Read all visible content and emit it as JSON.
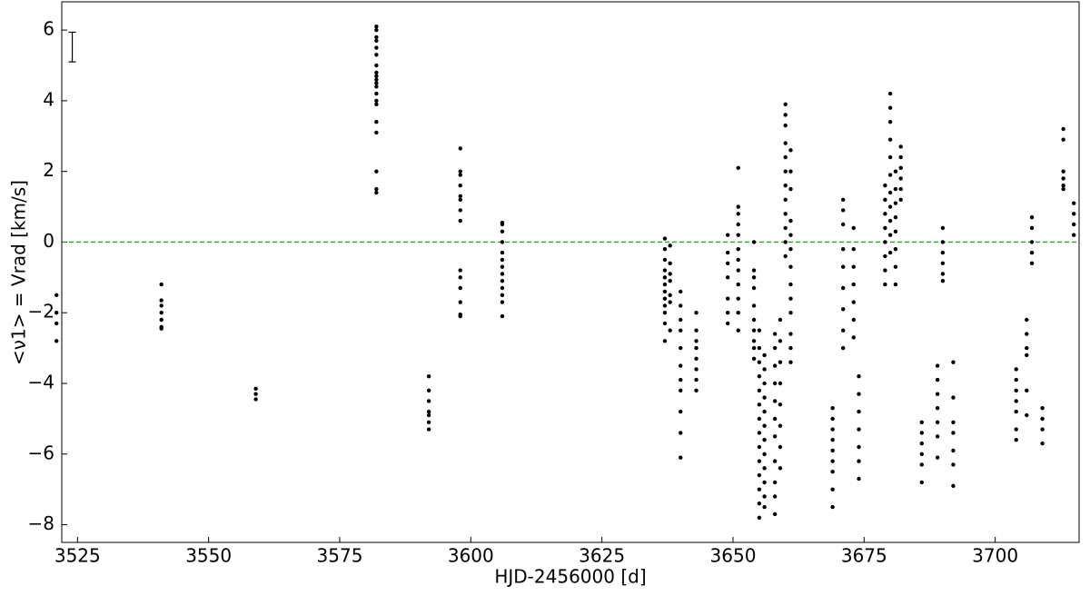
{
  "chart_data": {
    "type": "scatter",
    "xlabel": "HJD-2456000 [d]",
    "ylabel": "<ν1> = Vrad [km/s]",
    "xlim": [
      3522,
      3716
    ],
    "ylim": [
      -8.5,
      6.8
    ],
    "xticks": [
      3525,
      3550,
      3575,
      3600,
      3625,
      3650,
      3675,
      3700
    ],
    "yticks": [
      {
        "value": -8,
        "label": "−8"
      },
      {
        "value": -6,
        "label": "−6"
      },
      {
        "value": -4,
        "label": "−4"
      },
      {
        "value": -2,
        "label": "−2"
      },
      0,
      2,
      4,
      6
    ],
    "hline": {
      "value": 0,
      "color": "#2ca02c"
    },
    "errorbar": {
      "x": 3524,
      "y": 5.52,
      "err": 0.42
    },
    "color": "#000000",
    "x": [
      3521,
      3521,
      3521,
      3521,
      3541,
      3541,
      3541,
      3541,
      3541,
      3541,
      3541,
      3559,
      3559,
      3559,
      3582,
      3582,
      3582,
      3582,
      3582,
      3582,
      3582,
      3582,
      3582,
      3582,
      3582,
      3582,
      3582,
      3582,
      3582,
      3582,
      3582,
      3582,
      3582,
      3582,
      3592,
      3592,
      3592,
      3592,
      3592,
      3592,
      3592,
      3598,
      3598,
      3598,
      3598,
      3598,
      3598,
      3598,
      3598,
      3598,
      3598,
      3598,
      3598,
      3598,
      3598,
      3606,
      3606,
      3606,
      3606,
      3606,
      3606,
      3606,
      3606,
      3606,
      3606,
      3606,
      3606,
      3606,
      3637,
      3637,
      3637,
      3637,
      3637,
      3637,
      3637,
      3637,
      3637,
      3637,
      3637,
      3637,
      3638,
      3638,
      3638,
      3638,
      3638,
      3638,
      3638,
      3640,
      3640,
      3640,
      3640,
      3640,
      3640,
      3640,
      3640,
      3640,
      3640,
      3640,
      3643,
      3643,
      3643,
      3643,
      3643,
      3643,
      3643,
      3643,
      3649,
      3649,
      3649,
      3649,
      3649,
      3649,
      3649,
      3651,
      3651,
      3651,
      3651,
      3651,
      3651,
      3651,
      3651,
      3651,
      3651,
      3651,
      3651,
      3654,
      3654,
      3654,
      3654,
      3654,
      3654,
      3654,
      3654,
      3654,
      3654,
      3655,
      3655,
      3655,
      3655,
      3655,
      3655,
      3655,
      3655,
      3655,
      3655,
      3655,
      3655,
      3655,
      3655,
      3656,
      3656,
      3656,
      3656,
      3656,
      3656,
      3656,
      3656,
      3656,
      3656,
      3656,
      3656,
      3658,
      3658,
      3658,
      3658,
      3658,
      3658,
      3658,
      3658,
      3658,
      3658,
      3658,
      3659,
      3659,
      3659,
      3659,
      3659,
      3659,
      3659,
      3659,
      3660,
      3660,
      3660,
      3660,
      3660,
      3660,
      3660,
      3660,
      3660,
      3660,
      3660,
      3660,
      3661,
      3661,
      3661,
      3661,
      3661,
      3661,
      3661,
      3661,
      3661,
      3661,
      3661,
      3661,
      3661,
      3669,
      3669,
      3669,
      3669,
      3669,
      3669,
      3669,
      3669,
      3669,
      3671,
      3671,
      3671,
      3671,
      3671,
      3671,
      3671,
      3671,
      3671,
      3673,
      3673,
      3673,
      3673,
      3673,
      3673,
      3673,
      3674,
      3674,
      3674,
      3674,
      3674,
      3674,
      3674,
      3679,
      3679,
      3679,
      3679,
      3679,
      3679,
      3679,
      3679,
      3680,
      3680,
      3680,
      3680,
      3680,
      3680,
      3680,
      3680,
      3680,
      3680,
      3680,
      3681,
      3681,
      3681,
      3681,
      3681,
      3681,
      3681,
      3681,
      3682,
      3682,
      3682,
      3682,
      3682,
      3682,
      3686,
      3686,
      3686,
      3686,
      3686,
      3686,
      3689,
      3689,
      3689,
      3689,
      3689,
      3689,
      3689,
      3690,
      3690,
      3690,
      3690,
      3690,
      3690,
      3692,
      3692,
      3692,
      3692,
      3692,
      3692,
      3692,
      3704,
      3704,
      3704,
      3704,
      3704,
      3704,
      3704,
      3706,
      3706,
      3706,
      3706,
      3706,
      3706,
      3707,
      3707,
      3707,
      3707,
      3707,
      3709,
      3709,
      3709,
      3709,
      3713,
      3713,
      3713,
      3713,
      3713,
      3713,
      3715,
      3715,
      3715,
      3715
    ],
    "y": [
      -1.5,
      -2.0,
      -2.3,
      -2.8,
      -1.2,
      -1.65,
      -1.8,
      -2.0,
      -2.2,
      -2.4,
      -2.45,
      -4.15,
      -4.3,
      -4.45,
      6.1,
      6.0,
      5.8,
      5.7,
      5.5,
      5.3,
      5.0,
      4.8,
      4.7,
      4.6,
      4.5,
      4.4,
      4.2,
      4.0,
      3.9,
      3.4,
      3.1,
      2.0,
      1.5,
      1.4,
      -3.8,
      -4.2,
      -4.5,
      -4.8,
      -4.9,
      -5.1,
      -5.3,
      2.65,
      2.0,
      1.9,
      1.6,
      1.3,
      1.2,
      0.9,
      0.6,
      -0.8,
      -1.0,
      -1.3,
      -1.7,
      -2.05,
      -2.1,
      0.55,
      0.5,
      0.3,
      0.0,
      -0.3,
      -0.5,
      -0.7,
      -0.9,
      -1.1,
      -1.3,
      -1.5,
      -1.7,
      -2.1,
      0.1,
      -0.2,
      -0.5,
      -0.8,
      -1.0,
      -1.2,
      -1.4,
      -1.6,
      -1.8,
      -2.0,
      -2.3,
      -2.8,
      -0.1,
      -0.6,
      -0.9,
      -1.1,
      -1.5,
      -1.7,
      -2.5,
      -1.4,
      -1.8,
      -2.2,
      -2.5,
      -3.0,
      -3.5,
      -3.9,
      -4.2,
      -4.8,
      -5.4,
      -6.1,
      -2.0,
      -2.5,
      -2.8,
      -3.0,
      -3.3,
      -3.6,
      -3.9,
      -4.2,
      0.2,
      -0.3,
      -0.6,
      -1.0,
      -1.6,
      -2.0,
      -2.3,
      2.1,
      1.0,
      0.8,
      0.5,
      0.2,
      -0.2,
      -0.5,
      -0.8,
      -1.2,
      -1.6,
      -2.0,
      -2.5,
      0.0,
      -0.8,
      -1.0,
      -1.3,
      -1.8,
      -2.2,
      -2.5,
      -2.8,
      -3.0,
      -3.3,
      -2.5,
      -3.0,
      -3.4,
      -3.8,
      -4.2,
      -4.6,
      -5.0,
      -5.4,
      -5.8,
      -6.2,
      -6.6,
      -7.0,
      -7.4,
      -7.8,
      -3.2,
      -3.6,
      -4.0,
      -4.4,
      -4.8,
      -5.2,
      -5.6,
      -6.0,
      -6.4,
      -6.8,
      -7.2,
      -7.5,
      -2.6,
      -3.0,
      -3.5,
      -4.0,
      -4.5,
      -5.0,
      -5.5,
      -6.2,
      -6.8,
      -7.2,
      -7.7,
      -2.2,
      -2.8,
      -3.4,
      -4.0,
      -4.6,
      -5.2,
      -5.8,
      -6.4,
      3.9,
      3.6,
      3.3,
      2.8,
      2.4,
      2.0,
      1.6,
      1.2,
      0.8,
      0.4,
      0.0,
      -0.4,
      2.6,
      2.0,
      1.5,
      0.6,
      0.2,
      -0.2,
      -0.7,
      -1.2,
      -1.6,
      -2.0,
      -2.6,
      -3.0,
      -3.4,
      -4.7,
      -5.0,
      -5.3,
      -5.6,
      -5.9,
      -6.2,
      -6.5,
      -7.0,
      -7.5,
      1.2,
      0.9,
      0.5,
      -0.2,
      -0.7,
      -1.3,
      -1.9,
      -2.5,
      -3.0,
      0.4,
      -0.2,
      -0.7,
      -1.2,
      -1.7,
      -2.2,
      -2.7,
      -3.8,
      -4.3,
      -4.8,
      -5.3,
      -5.8,
      -6.2,
      -6.7,
      1.6,
      1.2,
      0.8,
      0.4,
      0.0,
      -0.4,
      -0.8,
      -1.2,
      4.2,
      3.8,
      3.4,
      2.9,
      2.4,
      1.9,
      1.4,
      1.0,
      0.6,
      0.2,
      -0.3,
      2.0,
      1.5,
      1.1,
      0.7,
      0.3,
      -0.2,
      -0.7,
      -1.2,
      2.7,
      2.4,
      2.1,
      1.8,
      1.5,
      1.2,
      -5.1,
      -5.4,
      -5.7,
      -6.0,
      -6.3,
      -6.8,
      -3.5,
      -3.9,
      -4.3,
      -4.7,
      -5.1,
      -5.5,
      -6.1,
      0.4,
      0.0,
      -0.3,
      -0.6,
      -0.9,
      -1.1,
      -3.4,
      -4.4,
      -5.1,
      -5.4,
      -5.9,
      -6.3,
      -6.9,
      -3.6,
      -3.9,
      -4.2,
      -4.5,
      -4.8,
      -5.3,
      -5.6,
      -2.2,
      -2.6,
      -3.0,
      -3.2,
      -4.2,
      -4.9,
      0.7,
      0.4,
      0.0,
      -0.3,
      -0.6,
      -4.7,
      -5.0,
      -5.3,
      -5.7,
      3.2,
      2.9,
      2.0,
      1.8,
      1.6,
      1.5,
      1.1,
      0.8,
      0.5,
      0.2
    ]
  }
}
